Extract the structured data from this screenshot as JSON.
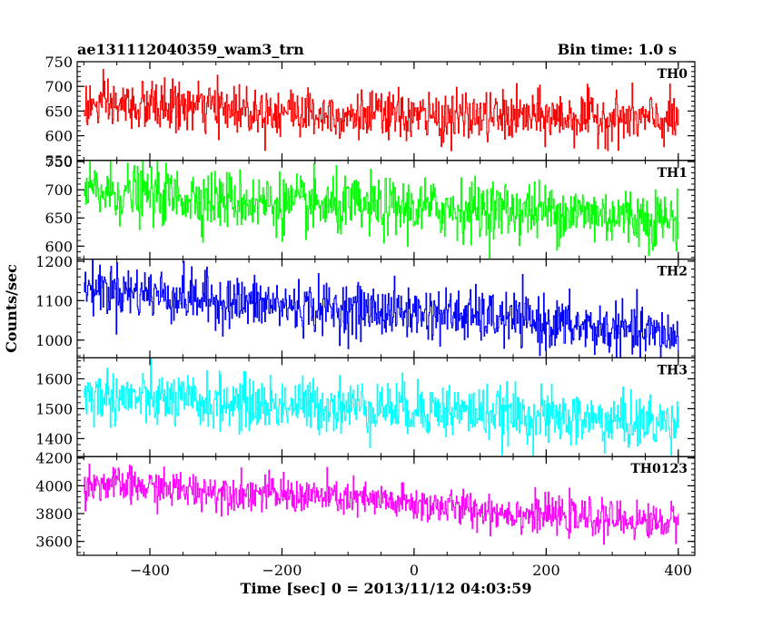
{
  "chart_data": {
    "type": "line",
    "title_left": "ae131112040359_wam3_trn",
    "title_right": "Bin time: 1.0 s",
    "xlabel": "Time [sec] 0 = 2013/11/12 04:03:59",
    "ylabel": "Counts/sec",
    "xlim": [
      -510,
      425
    ],
    "x_ticks": [
      -400,
      -200,
      0,
      200,
      400
    ],
    "x_tick_labels": [
      "−400",
      "−200",
      "0",
      "200",
      "400"
    ],
    "x_range": [
      -500,
      400
    ],
    "bin_seconds": 1.0,
    "panels": [
      {
        "name": "TH0",
        "color": "#ff0000",
        "ylim": [
          550,
          750
        ],
        "y_ticks": [
          550,
          600,
          650,
          700,
          750
        ],
        "y_tick_labels": [
          "550",
          "600",
          "650",
          "700",
          "750"
        ],
        "trend_start": 660,
        "trend_end": 628,
        "noise": 25
      },
      {
        "name": "TH1",
        "color": "#00ff00",
        "ylim": [
          577,
          752
        ],
        "y_ticks": [
          600,
          650,
          700,
          750
        ],
        "y_tick_labels": [
          "600",
          "650",
          "700",
          "750"
        ],
        "trend_start": 693,
        "trend_end": 648,
        "noise": 26
      },
      {
        "name": "TH2",
        "color": "#0000ff",
        "ylim": [
          955,
          1205
        ],
        "y_ticks": [
          1000,
          1100,
          1200
        ],
        "y_tick_labels": [
          "1000",
          "1100",
          "1200"
        ],
        "trend_start": 1130,
        "trend_end": 1015,
        "noise": 33
      },
      {
        "name": "TH3",
        "color": "#00ffff",
        "ylim": [
          1340,
          1670
        ],
        "y_ticks": [
          1400,
          1500,
          1600
        ],
        "y_tick_labels": [
          "1400",
          "1500",
          "1600"
        ],
        "trend_start": 1545,
        "trend_end": 1455,
        "noise": 45
      },
      {
        "name": "TH0123",
        "color": "#ff00ff",
        "ylim": [
          3500,
          4210
        ],
        "y_ticks": [
          3600,
          3800,
          4000,
          4200
        ],
        "y_tick_labels": [
          "3600",
          "3800",
          "4000",
          "4200"
        ],
        "trend_start": 4030,
        "trend_end": 3730,
        "noise": 65
      }
    ],
    "grid": false,
    "legend": "panel-labels-top-right"
  }
}
